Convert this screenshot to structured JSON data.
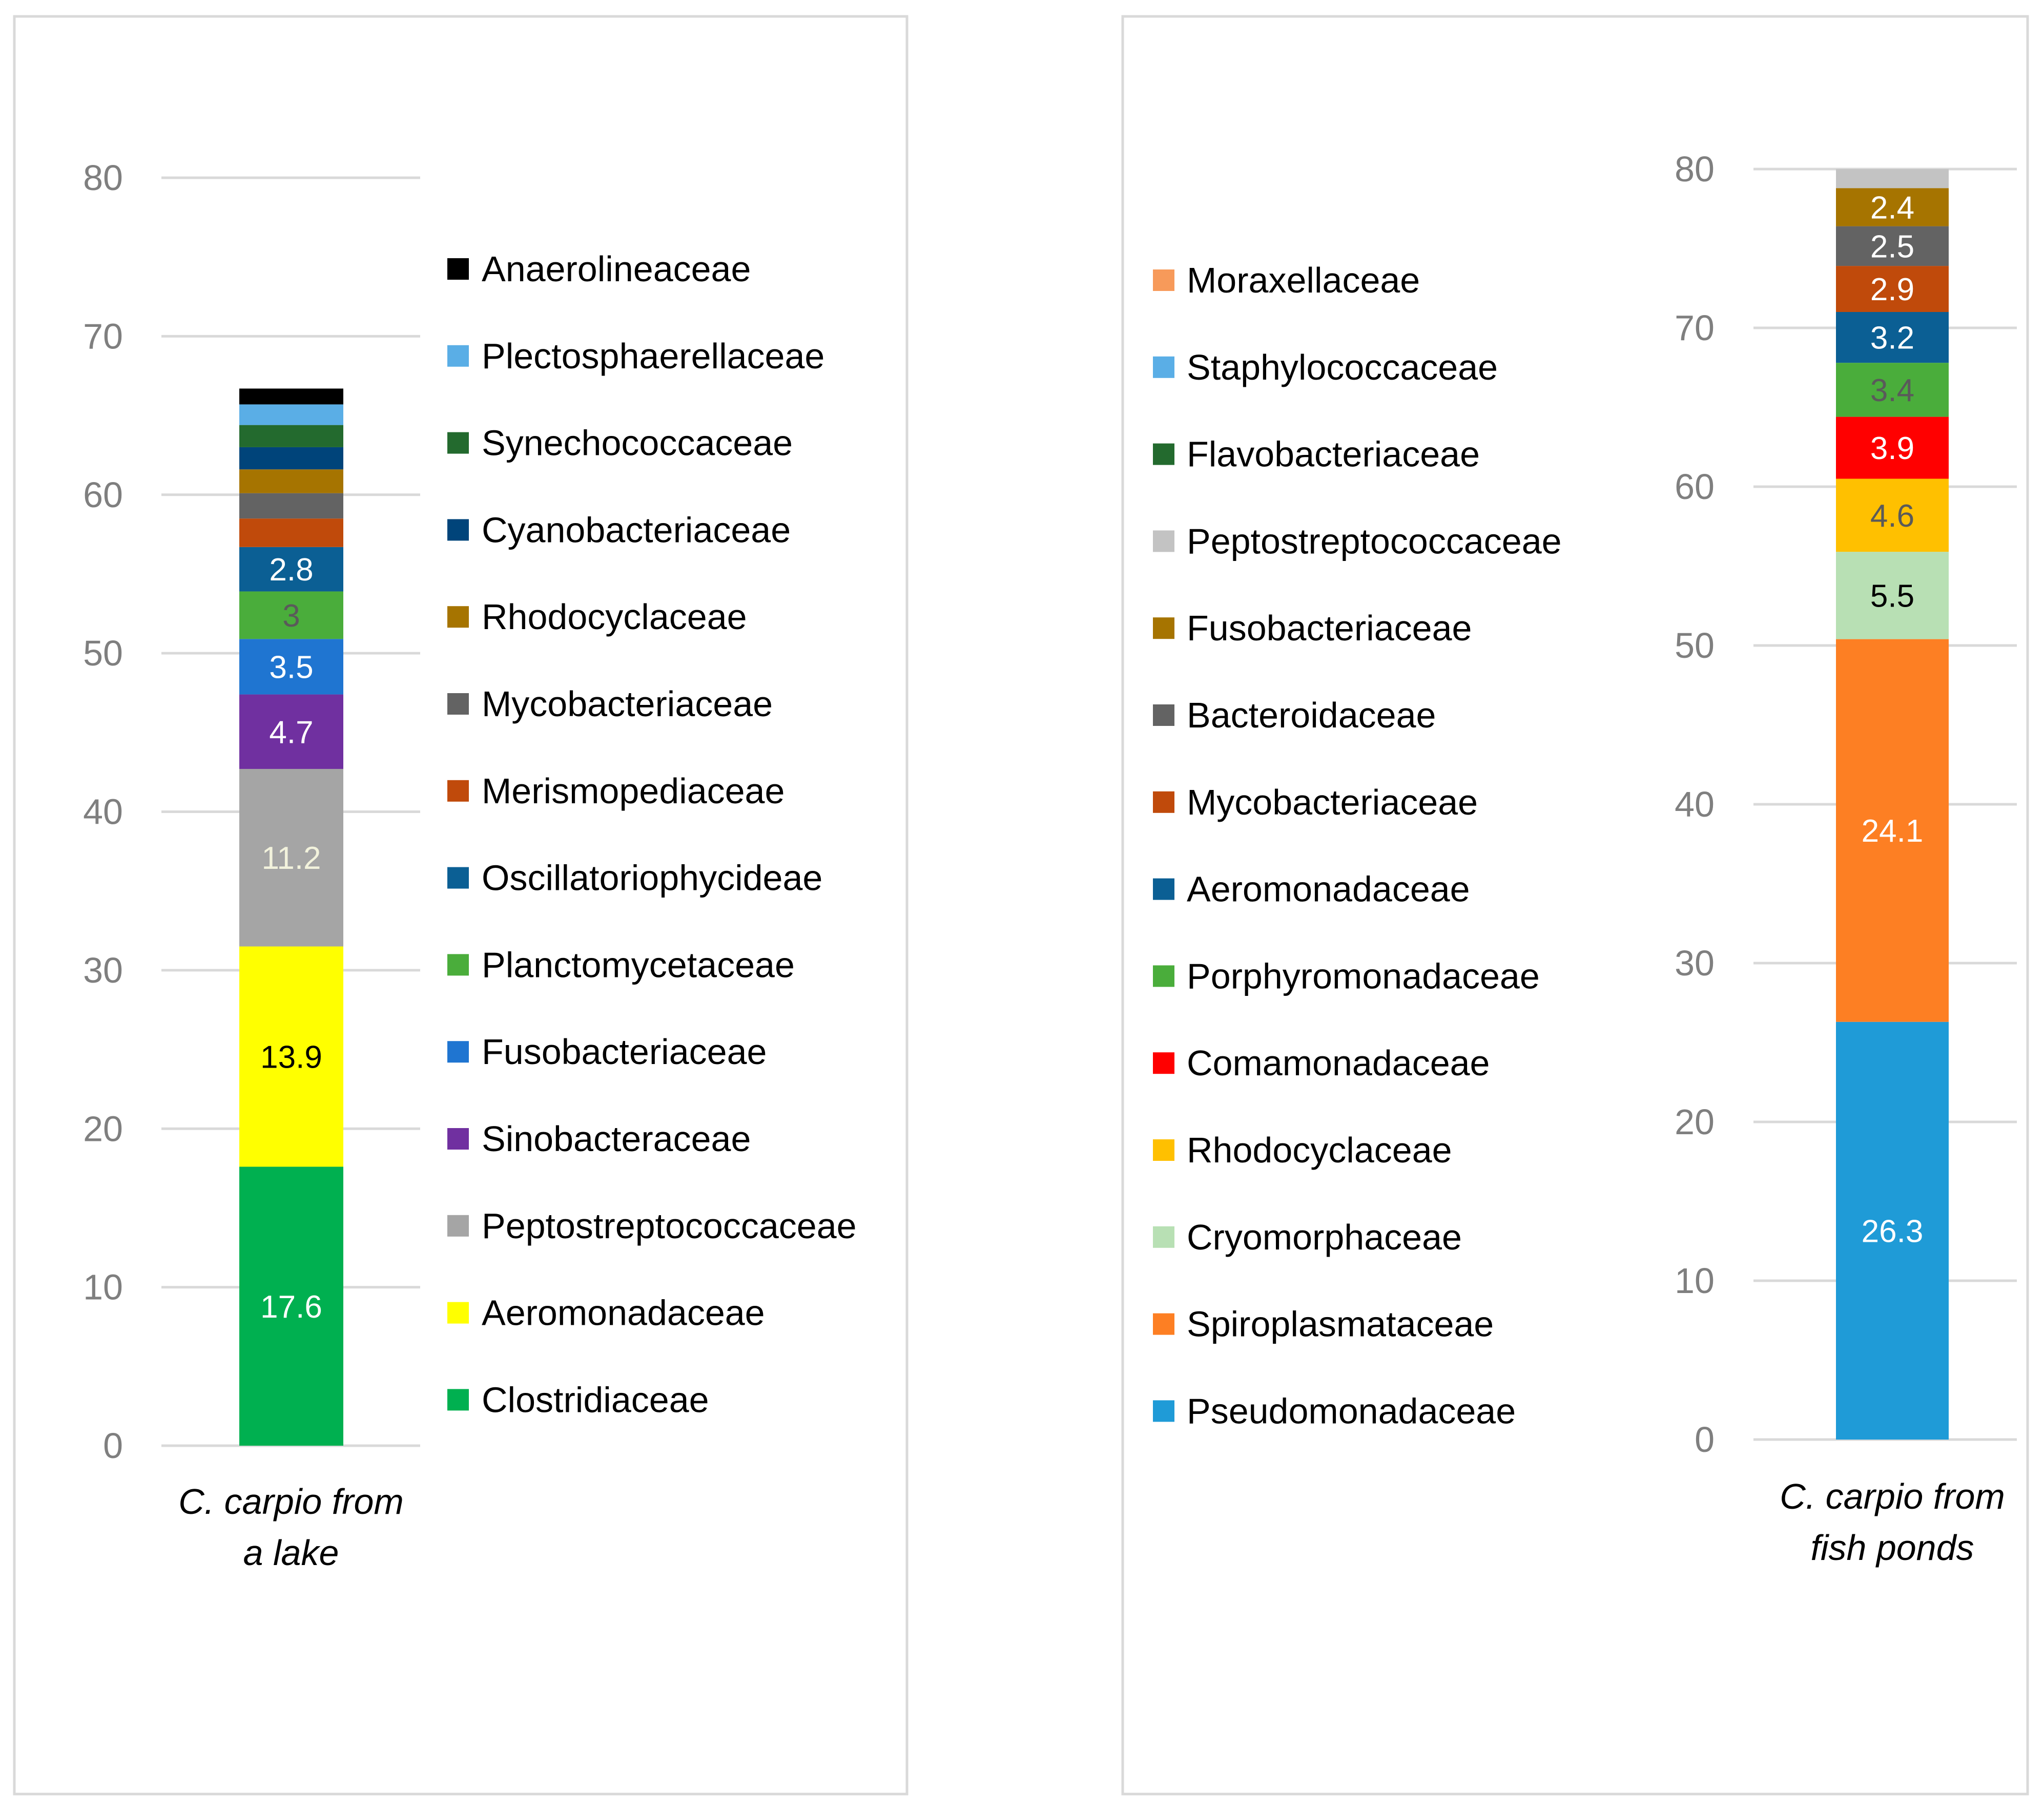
{
  "chart_data": [
    {
      "type": "bar",
      "stacked": true,
      "title": "",
      "xlabel": "",
      "ylabel": "",
      "ylim": [
        0,
        80
      ],
      "yticks": [
        0,
        10,
        20,
        30,
        40,
        50,
        60,
        70,
        80
      ],
      "grid": true,
      "legend_position": "right",
      "categories": [
        "C. carpio from a lake"
      ],
      "category_lines": [
        "C. carpio from",
        "a lake"
      ],
      "series": [
        {
          "name": "Clostridiaceae",
          "values": [
            17.6
          ],
          "color": "#00b050",
          "label": "17.6",
          "label_color": "#ffffff"
        },
        {
          "name": "Aeromonadaceae",
          "values": [
            13.9
          ],
          "color": "#ffff00",
          "label": "13.9",
          "label_color": "#000000"
        },
        {
          "name": "Peptostreptococcaceae",
          "values": [
            11.2
          ],
          "color": "#a5a5a5",
          "label": "11.2",
          "label_color": "#f2f2dc"
        },
        {
          "name": "Sinobacteraceae",
          "values": [
            4.7
          ],
          "color": "#7030a0",
          "label": "4.7",
          "label_color": "#ffffff"
        },
        {
          "name": "Fusobacteriaceae",
          "values": [
            3.5
          ],
          "color": "#1f75d1",
          "label": "3.5",
          "label_color": "#ffffff"
        },
        {
          "name": "Planctomycetaceae",
          "values": [
            3.0
          ],
          "color": "#4aad3b",
          "label": "3",
          "label_color": "#5a5a5a"
        },
        {
          "name": "Oscillatoriophycideae",
          "values": [
            2.8
          ],
          "color": "#0b5f94",
          "label": "2.8",
          "label_color": "#ffffff"
        },
        {
          "name": "Merismopediaceae",
          "values": [
            1.8
          ],
          "color": "#c04a0b",
          "label": null,
          "label_color": "#ffffff"
        },
        {
          "name": "Mycobacteriaceae",
          "values": [
            1.6
          ],
          "color": "#636363",
          "label": null,
          "label_color": "#ffffff"
        },
        {
          "name": "Rhodocyclaceae",
          "values": [
            1.5
          ],
          "color": "#a67400",
          "label": null,
          "label_color": "#ffffff"
        },
        {
          "name": "Cyanobacteriaceae",
          "values": [
            1.4
          ],
          "color": "#00447a",
          "label": null,
          "label_color": "#ffffff"
        },
        {
          "name": "Synechococcaceae",
          "values": [
            1.4
          ],
          "color": "#236a2e",
          "label": null,
          "label_color": "#ffffff"
        },
        {
          "name": "Plectosphaerellaceae",
          "values": [
            1.3
          ],
          "color": "#5aaee6",
          "label": null,
          "label_color": "#ffffff"
        },
        {
          "name": "Anaerolineaceae",
          "values": [
            1.0
          ],
          "color": "#000000",
          "label": null,
          "label_color": "#ffffff"
        }
      ]
    },
    {
      "type": "bar",
      "stacked": true,
      "title": "",
      "xlabel": "",
      "ylabel": "",
      "ylim": [
        0,
        80
      ],
      "yticks": [
        0,
        10,
        20,
        30,
        40,
        50,
        60,
        70,
        80
      ],
      "grid": true,
      "legend_position": "left",
      "categories": [
        "C. carpio from fish ponds"
      ],
      "category_lines": [
        "C. carpio from",
        "fish ponds"
      ],
      "series": [
        {
          "name": "Pseudomonadaceae",
          "values": [
            26.3
          ],
          "color": "#1f9bd7",
          "label": "26.3",
          "label_color": "#ffffff"
        },
        {
          "name": "Spiroplasmataceae",
          "values": [
            24.1
          ],
          "color": "#fd7f23",
          "label": "24.1",
          "label_color": "#ffffff"
        },
        {
          "name": "Cryomorphaceae",
          "values": [
            5.5
          ],
          "color": "#b8e0b4",
          "label": "5.5",
          "label_color": "#000000"
        },
        {
          "name": "Rhodocyclaceae",
          "values": [
            4.6
          ],
          "color": "#ffc000",
          "label": "4.6",
          "label_color": "#5a5a5a"
        },
        {
          "name": "Comamonadaceae",
          "values": [
            3.9
          ],
          "color": "#ff0000",
          "label": "3.9",
          "label_color": "#ffffff"
        },
        {
          "name": "Porphyromonadaceae",
          "values": [
            3.4
          ],
          "color": "#4aad3b",
          "label": "3.4",
          "label_color": "#5a5a5a"
        },
        {
          "name": "Aeromonadaceae",
          "values": [
            3.2
          ],
          "color": "#0b5f94",
          "label": "3.2",
          "label_color": "#ffffff"
        },
        {
          "name": "Mycobacteriaceae",
          "values": [
            2.9
          ],
          "color": "#c04a0b",
          "label": "2.9",
          "label_color": "#ffffff"
        },
        {
          "name": "Bacteroidaceae",
          "values": [
            2.5
          ],
          "color": "#636363",
          "label": "2.5",
          "label_color": "#ffffff"
        },
        {
          "name": "Fusobacteriaceae",
          "values": [
            2.4
          ],
          "color": "#a67400",
          "label": "2.4",
          "label_color": "#ffffff"
        },
        {
          "name": "Peptostreptococcaceae",
          "values": [
            1.2
          ],
          "color": "#c3c3c3",
          "label": null,
          "label_color": "#ffffff"
        },
        {
          "name": "Flavobacteriaceae",
          "values": [
            0
          ],
          "color": "#236a2e",
          "label": null,
          "label_color": "#ffffff"
        },
        {
          "name": "Staphylococcaceae",
          "values": [
            0
          ],
          "color": "#5aaee6",
          "label": null,
          "label_color": "#ffffff"
        },
        {
          "name": "Moraxellaceae",
          "values": [
            0
          ],
          "color": "#f79a5a",
          "label": null,
          "label_color": "#ffffff"
        }
      ]
    }
  ]
}
